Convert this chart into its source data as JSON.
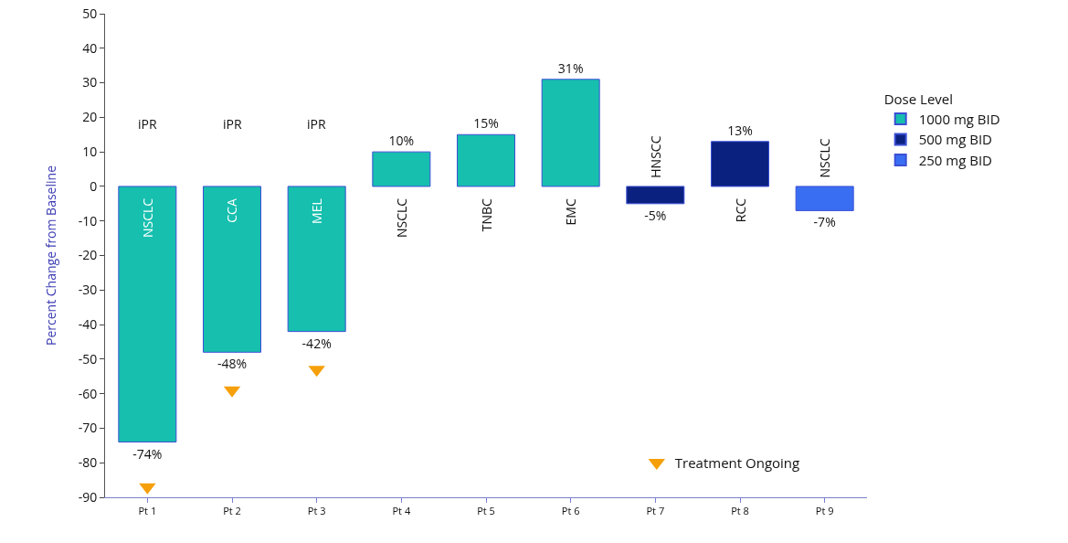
{
  "chart_data": {
    "type": "bar",
    "ylabel": "Percent Change from Baseline",
    "legend_title": "Dose Level",
    "legend": "right",
    "grid": false,
    "categories": [
      "Pt 1",
      "Pt 2",
      "Pt 3",
      "Pt 4",
      "Pt 5",
      "Pt 6",
      "Pt 7",
      "Pt 8",
      "Pt 9"
    ],
    "ylim": [
      -90,
      50
    ],
    "yticks": [
      -90,
      -80,
      -70,
      -60,
      -50,
      -40,
      -30,
      -20,
      -10,
      0,
      10,
      20,
      30,
      40,
      50
    ],
    "series": [
      {
        "name": "1000 mg BID",
        "color": "#16bfae",
        "values": [
          -74,
          -48,
          -42,
          10,
          15,
          31,
          null,
          null,
          null
        ],
        "value_labels": [
          "-74%",
          "-48%",
          "-42%",
          "10%",
          "15%",
          "31%",
          null,
          null,
          null
        ]
      },
      {
        "name": "500 mg BID",
        "color": "#0b2180",
        "values": [
          null,
          null,
          null,
          null,
          null,
          null,
          -5,
          13,
          null
        ],
        "value_labels": [
          null,
          null,
          null,
          null,
          null,
          null,
          "-5%",
          "13%",
          null
        ]
      },
      {
        "name": "250 mg BID",
        "color": "#3a6ef2",
        "values": [
          null,
          null,
          null,
          null,
          null,
          null,
          null,
          null,
          -7
        ],
        "value_labels": [
          null,
          null,
          null,
          null,
          null,
          null,
          null,
          null,
          "-7%"
        ]
      },
      {
        "name": "Treatment Ongoing",
        "type": "scatter",
        "marker": "triangle",
        "color": "#f5a00a",
        "x": [
          "Pt 1",
          "Pt 2",
          "Pt 3"
        ],
        "values": [
          -87,
          -59,
          -53
        ]
      }
    ],
    "annotations": [
      "NSCLC",
      "CCA",
      "MEL",
      "NSCLC",
      "TNBC",
      "EMC",
      "HNSCC",
      "RCC",
      "NSCLC",
      "iPR",
      "iPR",
      "iPR"
    ]
  }
}
